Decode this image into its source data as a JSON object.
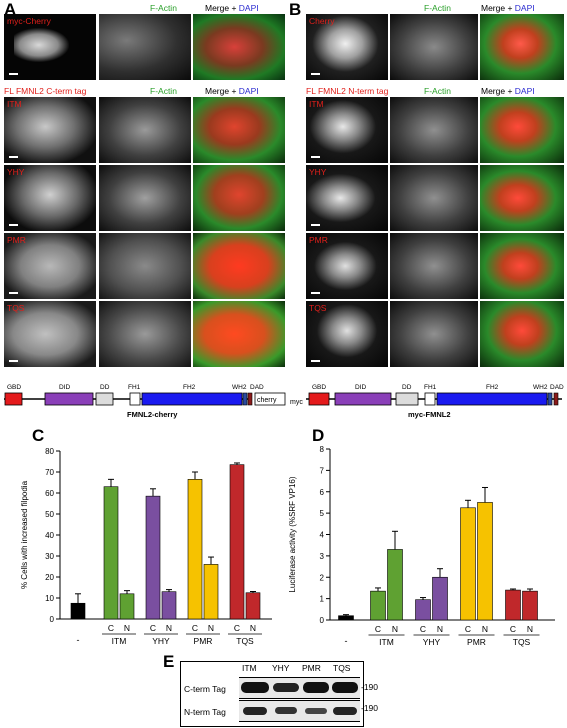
{
  "panelA": {
    "letter": "A",
    "col_headers": [
      "F-Actin",
      "Merge + ",
      "DAPI"
    ],
    "top_label": "myc-Cherry",
    "section_title": "FL FMNL2 C-term tag",
    "rows": [
      "ITM",
      "YHY",
      "PMR",
      "TQS"
    ],
    "construct": {
      "domains": [
        "GBD",
        "DID",
        "DD",
        "FH1",
        "FH2",
        "WH2",
        "DAD",
        "cherry"
      ],
      "name": "FMNL2-cherry"
    }
  },
  "panelB": {
    "letter": "B",
    "col_headers": [
      "F-Actin",
      "Merge + ",
      "DAPI"
    ],
    "top_label": "Cherry",
    "section_title": "FL FMNL2 N-term tag",
    "rows": [
      "ITM",
      "YHY",
      "PMR",
      "TQS"
    ],
    "construct": {
      "prefix": "myc",
      "domains": [
        "GBD",
        "DID",
        "DD",
        "FH1",
        "FH2",
        "WH2",
        "DAD"
      ],
      "name": "myc-FMNL2"
    }
  },
  "panelC": {
    "letter": "C"
  },
  "panelD": {
    "letter": "D"
  },
  "panelE": {
    "letter": "E",
    "columns": [
      "ITM",
      "YHY",
      "PMR",
      "TQS"
    ],
    "rows": [
      "C-term Tag",
      "N-term Tag"
    ],
    "markers": [
      "-190",
      "-190"
    ]
  },
  "chart_data": [
    {
      "type": "bar",
      "ylabel": "% Cells with increased filpodia",
      "ylim": [
        0,
        80
      ],
      "yticks": [
        0,
        10,
        20,
        30,
        40,
        50,
        60,
        70,
        80
      ],
      "control_label": "-",
      "groups": [
        "ITM",
        "YHY",
        "PMR",
        "TQS"
      ],
      "sub_labels": [
        "C",
        "N"
      ],
      "control": {
        "value": 7.5,
        "error": 4.5,
        "color": "#000000"
      },
      "series": [
        {
          "group": "ITM",
          "color": "#5fa132",
          "values": [
            63,
            12
          ],
          "errors": [
            3.5,
            1.5
          ]
        },
        {
          "group": "YHY",
          "color": "#7a4fa0",
          "values": [
            58.5,
            13
          ],
          "errors": [
            3.5,
            1.0
          ]
        },
        {
          "group": "PMR",
          "color": "#f6c200",
          "values": [
            66.5,
            26
          ],
          "errors": [
            3.5,
            3.5
          ]
        },
        {
          "group": "TQS",
          "color": "#c0282b",
          "values": [
            73.5,
            12.5
          ],
          "errors": [
            0.8,
            0.6
          ]
        }
      ]
    },
    {
      "type": "bar",
      "ylabel": "Luciferase activity (%SRF VP16)",
      "ylim": [
        0,
        8
      ],
      "yticks": [
        0,
        1,
        2,
        3,
        4,
        5,
        6,
        7,
        8
      ],
      "control_label": "-",
      "groups": [
        "ITM",
        "YHY",
        "PMR",
        "TQS"
      ],
      "sub_labels": [
        "C",
        "N"
      ],
      "control": {
        "value": 0.2,
        "error": 0.05,
        "color": "#000000"
      },
      "series": [
        {
          "group": "ITM",
          "color": "#5fa132",
          "values": [
            1.35,
            3.3
          ],
          "errors": [
            0.15,
            0.85
          ]
        },
        {
          "group": "YHY",
          "color": "#7a4fa0",
          "values": [
            0.95,
            2.0
          ],
          "errors": [
            0.1,
            0.4
          ]
        },
        {
          "group": "PMR",
          "color": "#f6c200",
          "values": [
            5.25,
            5.5
          ],
          "errors": [
            0.35,
            0.7
          ]
        },
        {
          "group": "TQS",
          "color": "#c0282b",
          "values": [
            1.4,
            1.35
          ],
          "errors": [
            0.05,
            0.1
          ]
        }
      ]
    }
  ]
}
